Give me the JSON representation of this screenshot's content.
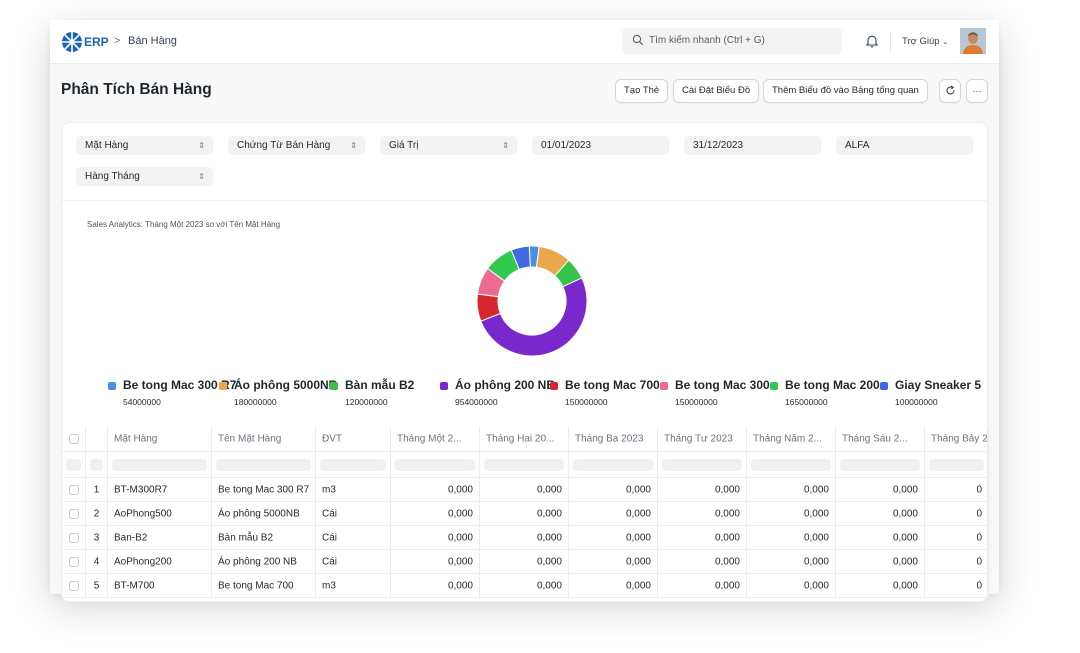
{
  "navbar": {
    "logo_text": "ERP",
    "breadcrumb_sep": ">",
    "breadcrumb": "Bán Hàng",
    "search_placeholder": "Tìm kiếm nhanh (Ctrl + G)",
    "help_label": "Trợ Giúp"
  },
  "page": {
    "title": "Phân Tích Bán Hàng",
    "buttons": {
      "create_card": "Tạo Thẻ",
      "chart_settings": "Cài Đặt Biểu Đồ",
      "add_to_dashboard": "Thêm Biểu đồ vào Bảng tổng quan",
      "refresh_icon": "refresh-icon",
      "more_icon": "ellipsis-icon",
      "more_label": "···"
    }
  },
  "filters": {
    "tree_type": "Mặt Hàng",
    "doc_type": "Chứng Từ Bán Hàng",
    "value_qty": "Giá Trị",
    "from_date": "01/01/2023",
    "to_date": "31/12/2023",
    "company": "ALFA",
    "range": "Hàng Tháng",
    "chevron": "⌃⌄"
  },
  "chart_data": {
    "type": "pie",
    "title": "Sales Analytics: Tháng Một 2023 so với Tên Mặt Hàng",
    "series": [
      {
        "name": "Be tong Mac 300 R7",
        "value": 54000000,
        "color": "#4a90e2"
      },
      {
        "name": "Áo phông 5000NB",
        "value": 180000000,
        "color": "#e8a84b"
      },
      {
        "name": "Bàn mẫu B2",
        "value": 120000000,
        "color": "#37c24b"
      },
      {
        "name": "Áo phông 200 NB",
        "value": 954000000,
        "color": "#7a27cc"
      },
      {
        "name": "Be tong Mac 700",
        "value": 150000000,
        "color": "#d6282c"
      },
      {
        "name": "Be tong Mac 300",
        "value": 150000000,
        "color": "#ec6a93"
      },
      {
        "name": "Be tong Mac 200",
        "value": 165000000,
        "color": "#31c950"
      },
      {
        "name": "Giay Sneaker 5",
        "value": 100000000,
        "color": "#4169e1"
      }
    ]
  },
  "legend": [
    {
      "label": "Be tong Mac 300 R7",
      "value": "54000000",
      "color": "#4a90e2"
    },
    {
      "label": "Áo phông 5000NB",
      "value": "180000000",
      "color": "#e8a84b"
    },
    {
      "label": "Bàn mẫu B2",
      "value": "120000000",
      "color": "#37c24b"
    },
    {
      "label": "Áo phông 200 NB",
      "value": "954000000",
      "color": "#7a27cc"
    },
    {
      "label": "Be tong Mac 700",
      "value": "150000000",
      "color": "#d6282c"
    },
    {
      "label": "Be tong Mac 300",
      "value": "150000000",
      "color": "#ec6a93"
    },
    {
      "label": "Be tong Mac 200",
      "value": "165000000",
      "color": "#31c950"
    },
    {
      "label": "Giay Sneaker 5",
      "value": "100000000",
      "color": "#4169e1"
    }
  ],
  "table": {
    "headers": [
      "Mặt Hàng",
      "Tên Mặt Hàng",
      "ĐVT",
      "Tháng Một 2...",
      "Tháng Hai 20...",
      "Tháng Ba 2023",
      "Tháng Tư 2023",
      "Tháng Năm 2...",
      "Tháng Sáu 2...",
      "Tháng Bảy 2"
    ],
    "rows": [
      {
        "idx": "1",
        "item": "BT-M300R7",
        "name": "Be tong Mac 300 R7",
        "uom": "m3",
        "values": [
          "0,000",
          "0,000",
          "0,000",
          "0,000",
          "0,000",
          "0,000",
          "0"
        ]
      },
      {
        "idx": "2",
        "item": "AoPhong500",
        "name": "Áo phông 5000NB",
        "uom": "Cái",
        "values": [
          "0,000",
          "0,000",
          "0,000",
          "0,000",
          "0,000",
          "0,000",
          "0"
        ]
      },
      {
        "idx": "3",
        "item": "Ban-B2",
        "name": "Bàn mẫu B2",
        "uom": "Cái",
        "values": [
          "0,000",
          "0,000",
          "0,000",
          "0,000",
          "0,000",
          "0,000",
          "0"
        ]
      },
      {
        "idx": "4",
        "item": "AoPhong200",
        "name": "Áo phông 200 NB",
        "uom": "Cái",
        "values": [
          "0,000",
          "0,000",
          "0,000",
          "0,000",
          "0,000",
          "0,000",
          "0"
        ]
      },
      {
        "idx": "5",
        "item": "BT-M700",
        "name": "Be tong Mac 700",
        "uom": "m3",
        "values": [
          "0,000",
          "0,000",
          "0,000",
          "0,000",
          "0,000",
          "0,000",
          "0"
        ]
      }
    ]
  }
}
